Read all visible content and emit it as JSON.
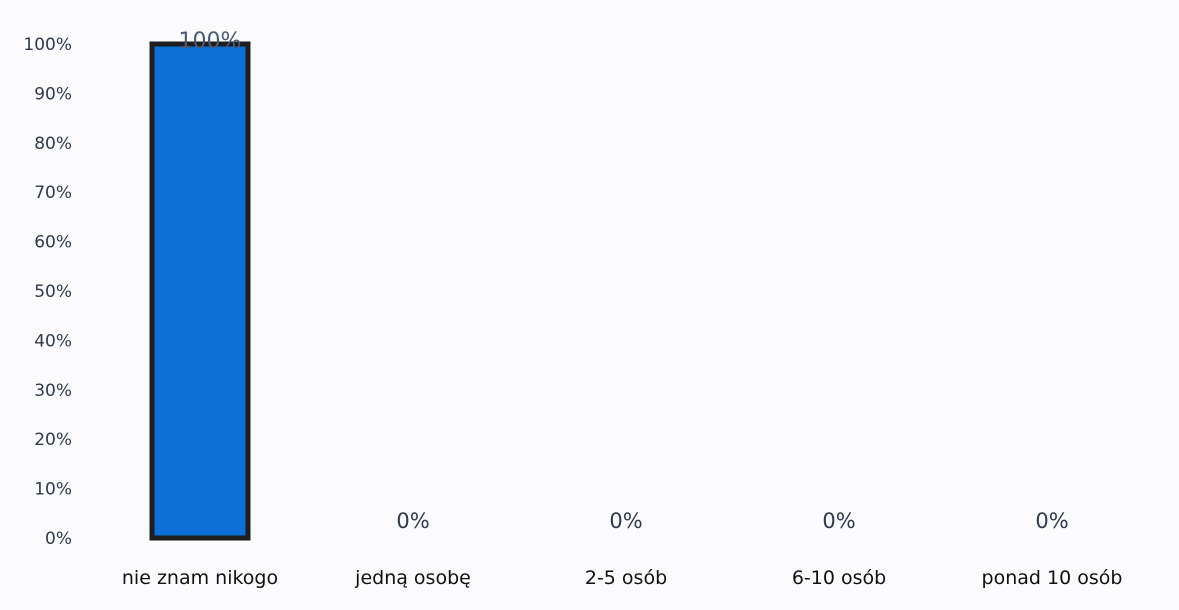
{
  "chart_data": {
    "type": "bar",
    "categories": [
      "nie znam nikogo",
      "jedną osobę",
      "2-5 osób",
      "6-10 osób",
      "ponad 10 osób"
    ],
    "values": [
      100,
      0,
      0,
      0,
      0
    ],
    "data_labels": [
      "100%",
      "0%",
      "0%",
      "0%",
      "0%"
    ],
    "y_ticks": [
      "0%",
      "10%",
      "20%",
      "30%",
      "40%",
      "50%",
      "60%",
      "70%",
      "80%",
      "90%",
      "100%"
    ],
    "ylim": [
      0,
      100
    ],
    "title": "",
    "xlabel": "",
    "ylabel": "",
    "grid": false,
    "legend": "none",
    "bar_color": "#0a6fd6",
    "bar_edge_color": "#1e1e1e"
  }
}
